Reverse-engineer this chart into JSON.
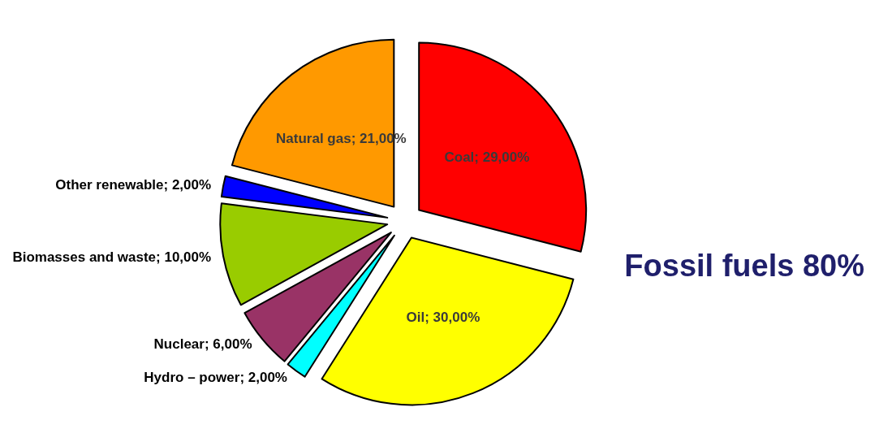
{
  "chart_data": {
    "type": "pie",
    "categories": [
      "Coal",
      "Oil",
      "Hydro – power",
      "Nuclear",
      "Biomasses and waste",
      "Other renewable",
      "Natural gas"
    ],
    "values": [
      29,
      30,
      2,
      6,
      10,
      2,
      21
    ],
    "value_labels": [
      "29,00%",
      "30,00%",
      "2,00%",
      "6,00%",
      "10,00%",
      "2,00%",
      "21,00%"
    ],
    "colors": [
      "#ff0000",
      "#ffff00",
      "#00ffff",
      "#993366",
      "#99cc00",
      "#0000ff",
      "#ff9900"
    ],
    "annotations": [
      "Fossil fuels 80%"
    ],
    "legend": false
  }
}
